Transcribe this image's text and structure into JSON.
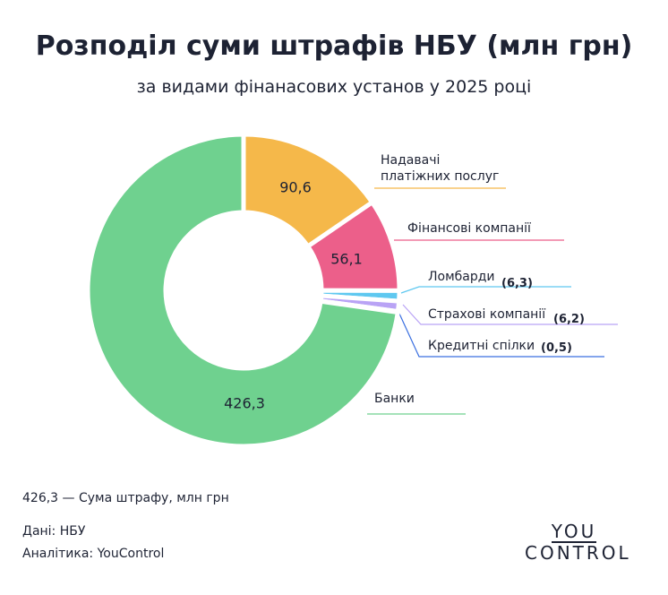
{
  "chart_data": {
    "type": "donut",
    "title": "Розподіл суми штрафів НБУ (млн грн)",
    "subtitle": "за видами фінанасових установ у 2025 році",
    "categories": [
      "Надавачі\nплатіжних послуг",
      "Фінансові компанії",
      "Ломбарди",
      "Страхові компанії",
      "Кредитні спілки",
      "Банки"
    ],
    "values": [
      90.6,
      56.1,
      6.3,
      6.2,
      0.5,
      426.3
    ],
    "value_labels": [
      "90,6",
      "56,1",
      "(6,3)",
      "(6,2)",
      "(0,5)",
      "426,3"
    ],
    "colors": [
      "#f5b84a",
      "#ec5f8a",
      "#5fc8f0",
      "#b9a3f5",
      "#3a6fe0",
      "#6fd18f"
    ],
    "note": "426,3 — Сума штрафу, млн грн",
    "source": "Дані: НБУ",
    "analytics": "Аналітика: YouControl",
    "logo": [
      "YOU",
      "CONTROL"
    ]
  }
}
